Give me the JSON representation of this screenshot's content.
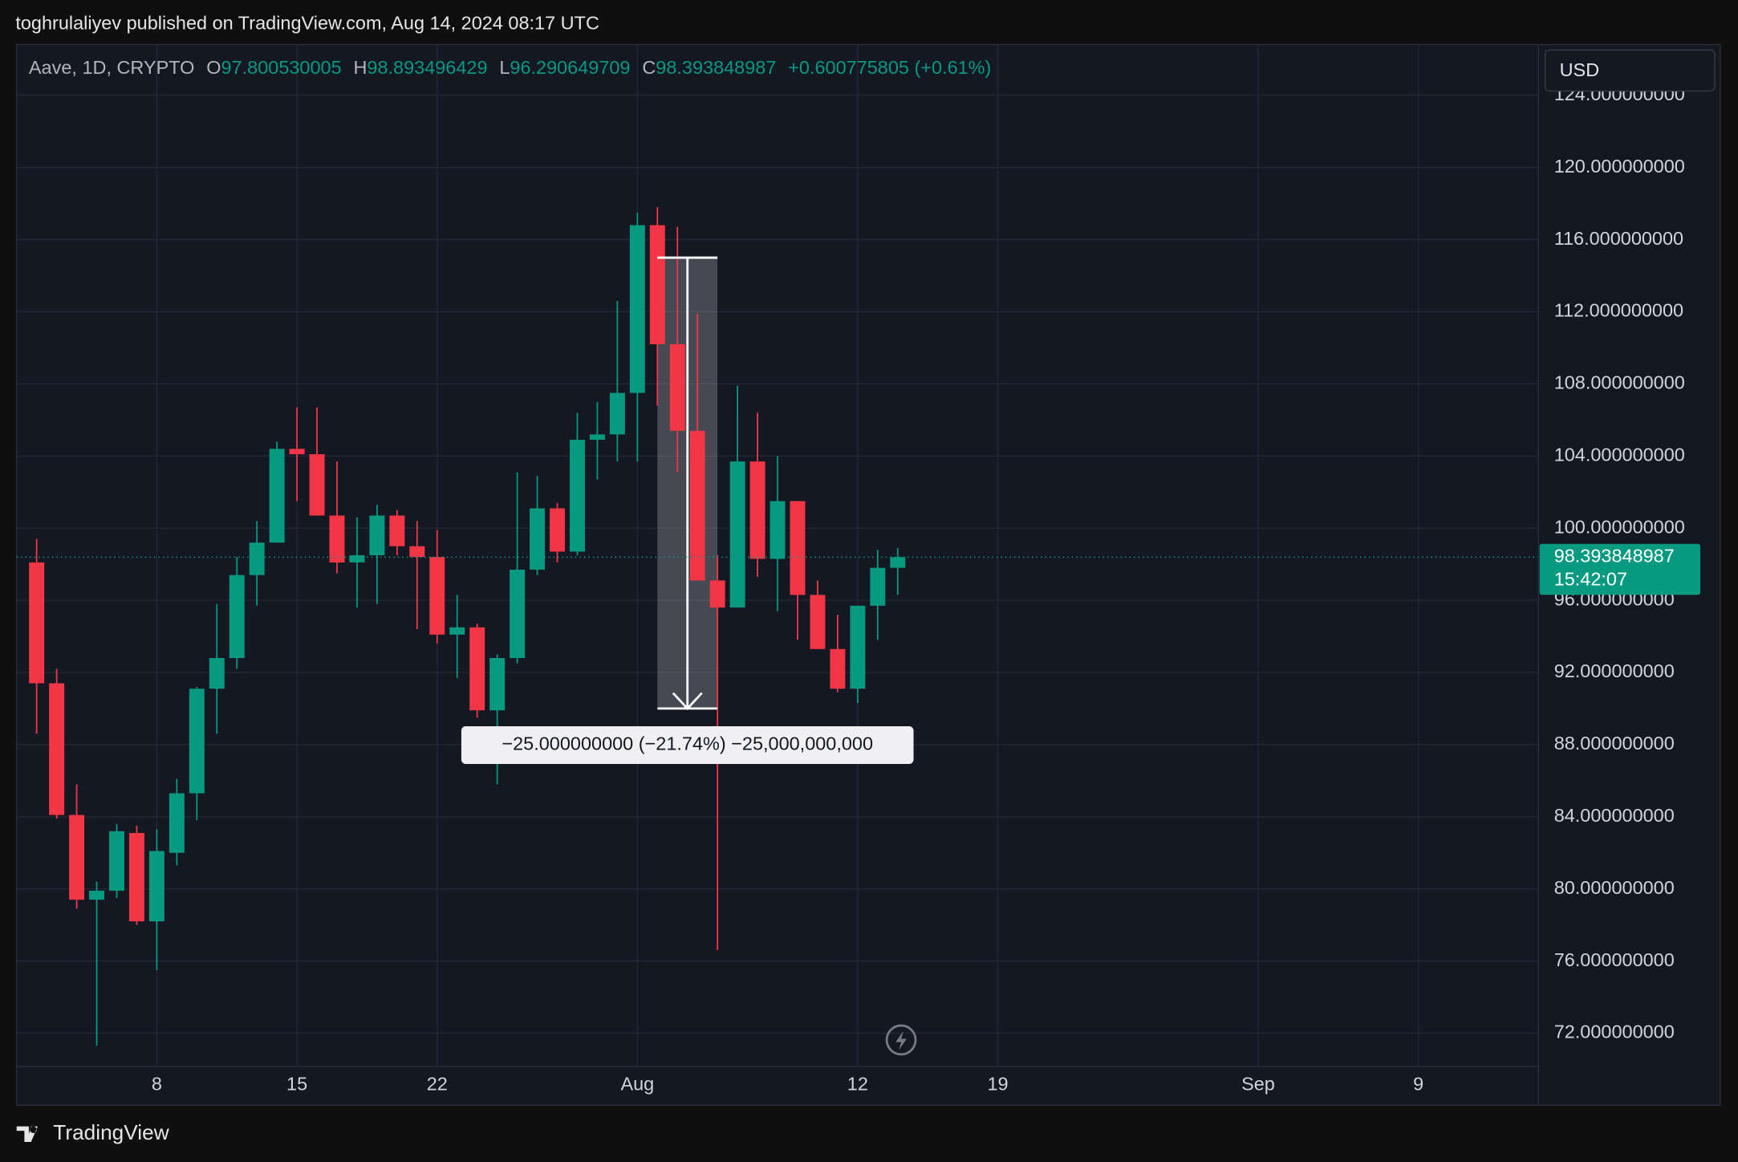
{
  "header": {
    "title": "toghrulaliyev published on TradingView.com, Aug 14, 2024 08:17 UTC",
    "footer": "TradingView",
    "currency": "USD"
  },
  "chart_data": {
    "type": "candlestick",
    "symbol": "Aave, 1D, CRYPTO",
    "ohlc_labels": [
      "O",
      "H",
      "L",
      "C"
    ],
    "change": "+0.600775805",
    "change_pct": "(+0.61%)",
    "countdown": "15:42:07",
    "x": [
      "2024-07-02",
      "2024-07-03",
      "2024-07-04",
      "2024-07-05",
      "2024-07-06",
      "2024-07-07",
      "2024-07-08",
      "2024-07-09",
      "2024-07-10",
      "2024-07-11",
      "2024-07-12",
      "2024-07-13",
      "2024-07-14",
      "2024-07-15",
      "2024-07-16",
      "2024-07-17",
      "2024-07-18",
      "2024-07-19",
      "2024-07-20",
      "2024-07-21",
      "2024-07-22",
      "2024-07-23",
      "2024-07-24",
      "2024-07-25",
      "2024-07-26",
      "2024-07-27",
      "2024-07-28",
      "2024-07-29",
      "2024-07-30",
      "2024-07-31",
      "2024-08-01",
      "2024-08-02",
      "2024-08-03",
      "2024-08-04",
      "2024-08-05",
      "2024-08-06",
      "2024-08-07",
      "2024-08-08",
      "2024-08-09",
      "2024-08-10",
      "2024-08-11",
      "2024-08-12",
      "2024-08-13",
      "2024-08-14"
    ],
    "open": [
      98.1,
      91.4,
      84.1,
      79.4,
      79.9,
      83.1,
      78.2,
      82.0,
      85.3,
      91.1,
      92.8,
      97.4,
      99.2,
      104.4,
      104.1,
      100.7,
      98.1,
      98.5,
      100.7,
      99.0,
      98.4,
      94.1,
      94.5,
      89.9,
      92.8,
      97.7,
      101.1,
      98.7,
      104.9,
      105.2,
      107.5,
      116.8,
      110.2,
      105.4,
      97.1,
      95.6,
      103.7,
      98.3,
      101.5,
      96.3,
      93.3,
      91.1,
      95.7,
      97.800530005
    ],
    "high": [
      99.4,
      92.2,
      85.8,
      80.4,
      83.6,
      83.5,
      83.3,
      86.1,
      91.2,
      95.8,
      98.4,
      100.4,
      104.8,
      106.7,
      106.7,
      103.7,
      100.6,
      101.3,
      101.0,
      100.4,
      99.9,
      96.3,
      94.7,
      93.0,
      103.1,
      102.9,
      101.4,
      106.4,
      107.0,
      112.6,
      117.5,
      117.8,
      116.7,
      111.9,
      98.5,
      107.9,
      106.4,
      104.0,
      101.5,
      97.1,
      95.2,
      95.7,
      98.8,
      98.893496429
    ],
    "low": [
      88.6,
      83.9,
      78.9,
      71.3,
      79.5,
      78.0,
      75.5,
      81.3,
      83.8,
      88.6,
      92.2,
      95.7,
      99.2,
      101.5,
      100.7,
      97.5,
      95.6,
      95.8,
      98.5,
      94.4,
      93.6,
      91.7,
      89.5,
      85.8,
      92.5,
      97.4,
      98.1,
      98.5,
      102.7,
      103.7,
      103.7,
      106.8,
      103.1,
      97.1,
      76.6,
      95.6,
      97.3,
      95.4,
      93.8,
      93.3,
      90.9,
      90.3,
      93.8,
      96.290649709
    ],
    "close": [
      91.4,
      84.1,
      79.4,
      79.9,
      83.2,
      78.2,
      82.1,
      85.3,
      91.1,
      92.8,
      97.4,
      99.2,
      104.4,
      104.1,
      100.7,
      98.1,
      98.5,
      100.7,
      99.0,
      98.4,
      94.1,
      94.5,
      89.9,
      92.8,
      97.7,
      101.1,
      98.7,
      104.9,
      105.2,
      107.5,
      116.8,
      110.2,
      105.4,
      97.1,
      95.6,
      103.7,
      98.3,
      101.5,
      96.3,
      93.3,
      91.1,
      95.7,
      97.8,
      98.393848987
    ],
    "up_color": "#089981",
    "down_color": "#f23645",
    "xlim": [
      "2024-07-01",
      "2024-09-15"
    ],
    "xticks": [
      {
        "value": "2024-07-08",
        "label": "8"
      },
      {
        "value": "2024-07-15",
        "label": "15"
      },
      {
        "value": "2024-07-22",
        "label": "22"
      },
      {
        "value": "2024-08-01",
        "label": "Aug"
      },
      {
        "value": "2024-08-12",
        "label": "12"
      },
      {
        "value": "2024-08-19",
        "label": "19"
      },
      {
        "value": "2024-09-01",
        "label": "Sep"
      },
      {
        "value": "2024-09-09",
        "label": "9"
      }
    ],
    "ylim": [
      70.15,
      126.82
    ],
    "yticks": [
      {
        "value": 72,
        "label": "72.000000000"
      },
      {
        "value": 76,
        "label": "76.000000000"
      },
      {
        "value": 80,
        "label": "80.000000000"
      },
      {
        "value": 84,
        "label": "84.000000000"
      },
      {
        "value": 88,
        "label": "88.000000000"
      },
      {
        "value": 92,
        "label": "92.000000000"
      },
      {
        "value": 96,
        "label": "96.000000000"
      },
      {
        "value": 100,
        "label": "100.000000000"
      },
      {
        "value": 104,
        "label": "104.000000000"
      },
      {
        "value": 108,
        "label": "108.000000000"
      },
      {
        "value": 112,
        "label": "112.000000000"
      },
      {
        "value": 116,
        "label": "116.000000000"
      },
      {
        "value": 120,
        "label": "120.000000000"
      },
      {
        "value": 124,
        "label": "124.000000000"
      }
    ],
    "grid": true,
    "measure": {
      "x": [
        "2024-08-02",
        "2024-08-05"
      ],
      "values": [
        115,
        90
      ],
      "label": "−25.000000000 (−21.74%) −25,000,000,000"
    }
  }
}
